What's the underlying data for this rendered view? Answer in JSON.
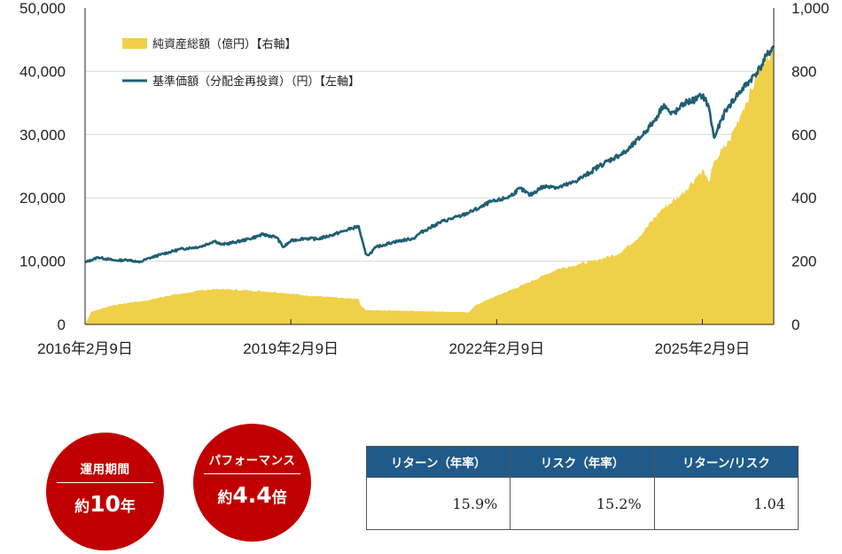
{
  "chart_data": {
    "type": "line+area",
    "left_axis": {
      "ticks": [
        "50,000",
        "40,000",
        "30,000",
        "20,000",
        "10,000",
        "0"
      ],
      "range": [
        0,
        50000
      ],
      "unit": "円"
    },
    "right_axis": {
      "ticks": [
        "1,000",
        "800",
        "600",
        "400",
        "200",
        "0"
      ],
      "range": [
        0,
        1000
      ],
      "unit": "億円"
    },
    "x_axis": {
      "ticks": [
        "2016年2月9日",
        "2019年2月9日",
        "2022年2月9日",
        "2025年2月9日"
      ],
      "range": [
        2016.11,
        2026.15
      ]
    },
    "legend": [
      {
        "label": "純資産総額（億円）【右軸】",
        "type": "area",
        "color": "#f0d048"
      },
      {
        "label": "基準価額（分配金再投資）（円）【左軸】",
        "type": "line",
        "color": "#1f5f72"
      }
    ],
    "series": [
      {
        "name": "基準価額（分配金再投資）（円）",
        "axis": "left",
        "color": "#1f5f72",
        "points": [
          [
            2016.11,
            9800
          ],
          [
            2016.3,
            10600
          ],
          [
            2016.55,
            10100
          ],
          [
            2016.75,
            10200
          ],
          [
            2016.9,
            9800
          ],
          [
            2017.0,
            10300
          ],
          [
            2017.2,
            11000
          ],
          [
            2017.5,
            11900
          ],
          [
            2017.8,
            12300
          ],
          [
            2018.0,
            13200
          ],
          [
            2018.1,
            12600
          ],
          [
            2018.3,
            13000
          ],
          [
            2018.5,
            13500
          ],
          [
            2018.7,
            14200
          ],
          [
            2018.9,
            13800
          ],
          [
            2019.0,
            12200
          ],
          [
            2019.11,
            13200
          ],
          [
            2019.3,
            13600
          ],
          [
            2019.5,
            13500
          ],
          [
            2019.7,
            14100
          ],
          [
            2019.9,
            14800
          ],
          [
            2020.0,
            15200
          ],
          [
            2020.1,
            15500
          ],
          [
            2020.13,
            14000
          ],
          [
            2020.2,
            11200
          ],
          [
            2020.25,
            11000
          ],
          [
            2020.35,
            12200
          ],
          [
            2020.6,
            13000
          ],
          [
            2020.9,
            13600
          ],
          [
            2021.0,
            14500
          ],
          [
            2021.3,
            16200
          ],
          [
            2021.6,
            17200
          ],
          [
            2021.9,
            18600
          ],
          [
            2022.0,
            19300
          ],
          [
            2022.11,
            19500
          ],
          [
            2022.3,
            20200
          ],
          [
            2022.45,
            21500
          ],
          [
            2022.6,
            20400
          ],
          [
            2022.75,
            21600
          ],
          [
            2022.9,
            21900
          ],
          [
            2023.0,
            21600
          ],
          [
            2023.2,
            22300
          ],
          [
            2023.4,
            23500
          ],
          [
            2023.6,
            25000
          ],
          [
            2023.8,
            26200
          ],
          [
            2024.0,
            27300
          ],
          [
            2024.2,
            29500
          ],
          [
            2024.4,
            32000
          ],
          [
            2024.55,
            34800
          ],
          [
            2024.65,
            33200
          ],
          [
            2024.75,
            33800
          ],
          [
            2024.85,
            35000
          ],
          [
            2025.0,
            35500
          ],
          [
            2025.11,
            36200
          ],
          [
            2025.2,
            34500
          ],
          [
            2025.28,
            29500
          ],
          [
            2025.32,
            30500
          ],
          [
            2025.45,
            33800
          ],
          [
            2025.6,
            36000
          ],
          [
            2025.8,
            38500
          ],
          [
            2025.95,
            40500
          ],
          [
            2026.05,
            42500
          ],
          [
            2026.15,
            44000
          ]
        ]
      },
      {
        "name": "純資産総額（億円）",
        "axis": "right",
        "color": "#f0d048",
        "points": [
          [
            2016.11,
            0
          ],
          [
            2016.2,
            40
          ],
          [
            2016.5,
            60
          ],
          [
            2016.8,
            70
          ],
          [
            2017.0,
            75
          ],
          [
            2017.3,
            90
          ],
          [
            2017.6,
            100
          ],
          [
            2017.9,
            110
          ],
          [
            2018.1,
            112
          ],
          [
            2018.4,
            108
          ],
          [
            2018.7,
            105
          ],
          [
            2019.0,
            100
          ],
          [
            2019.3,
            92
          ],
          [
            2019.6,
            88
          ],
          [
            2019.9,
            82
          ],
          [
            2020.1,
            80
          ],
          [
            2020.13,
            60
          ],
          [
            2020.2,
            45
          ],
          [
            2020.6,
            44
          ],
          [
            2021.0,
            42
          ],
          [
            2021.4,
            40
          ],
          [
            2021.7,
            38
          ],
          [
            2021.8,
            60
          ],
          [
            2022.0,
            80
          ],
          [
            2022.11,
            90
          ],
          [
            2022.5,
            125
          ],
          [
            2022.8,
            155
          ],
          [
            2023.0,
            175
          ],
          [
            2023.3,
            190
          ],
          [
            2023.6,
            205
          ],
          [
            2023.9,
            225
          ],
          [
            2024.2,
            280
          ],
          [
            2024.5,
            360
          ],
          [
            2024.8,
            410
          ],
          [
            2025.0,
            460
          ],
          [
            2025.11,
            490
          ],
          [
            2025.2,
            450
          ],
          [
            2025.3,
            520
          ],
          [
            2025.5,
            580
          ],
          [
            2025.7,
            680
          ],
          [
            2025.9,
            780
          ],
          [
            2026.05,
            850
          ],
          [
            2026.15,
            860
          ]
        ]
      }
    ]
  },
  "badges": [
    {
      "label": "運用期間",
      "prefix": "約",
      "number": "10",
      "suffix": "年"
    },
    {
      "label": "パフォーマンス",
      "prefix": "約",
      "number": "4.4",
      "suffix": "倍"
    }
  ],
  "stats_table": {
    "headers": [
      "リターン（年率）",
      "リスク（年率）",
      "リターン/リスク"
    ],
    "values": [
      "15.9%",
      "15.2%",
      "1.04"
    ]
  },
  "colors": {
    "badge_red": "#c00000",
    "header_blue": "#1f5a8a"
  }
}
